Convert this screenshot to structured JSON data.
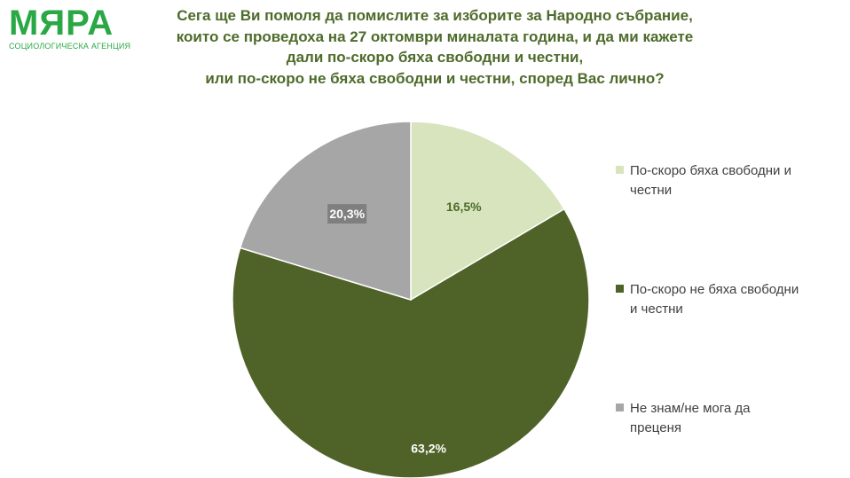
{
  "logo": {
    "name": "МЯРА",
    "subtitle": "СОЦИОЛОГИЧЕСКА АГЕНЦИЯ"
  },
  "title_lines": [
    "Сега ще Ви помоля да помислите за изборите за Народно събрание,",
    "които се проведоха на 27 октомври миналата година, и да ми кажете",
    "дали по-скоро бяха свободни и честни,",
    "или по-скоро не бяха свободни и честни, според Вас лично?"
  ],
  "chart_data": {
    "type": "pie",
    "title": "Сега ще Ви помоля да помислите за изборите за Народно събрание, които се проведоха на 27 октомври миналата година, и да ми кажете дали по-скоро бяха свободни и честни, или по-скоро не бяха свободни и честни, според Вас лично?",
    "start_angle_deg": 0,
    "direction": "clockwise",
    "legend_position": "right",
    "slices": [
      {
        "label": "По-скоро бяха свободни и честни",
        "value": 16.5,
        "display": "16,5%",
        "color": "#d7e4bd",
        "label_color": "#4d6b2a",
        "label_bg": "#d7e4bd"
      },
      {
        "label": "По-скоро не бяха свободни и честни",
        "value": 63.2,
        "display": "63,2%",
        "color": "#4f6228",
        "label_color": "#ffffff",
        "label_bg": "#4f6228"
      },
      {
        "label": "Не знам/не мога да преценя",
        "value": 20.3,
        "display": "20,3%",
        "color": "#a6a6a6",
        "label_color": "#ffffff",
        "label_bg": "#7f7f7f"
      }
    ]
  },
  "legend": {
    "items": [
      {
        "line1": "По-скоро бяха свободни и",
        "line2": "честни",
        "color": "#d7e4bd"
      },
      {
        "line1": "По-скоро не бяха свободни",
        "line2": "и честни",
        "color": "#4f6228"
      },
      {
        "line1": "Не знам/не мога да",
        "line2": "преценя",
        "color": "#a6a6a6"
      }
    ]
  }
}
